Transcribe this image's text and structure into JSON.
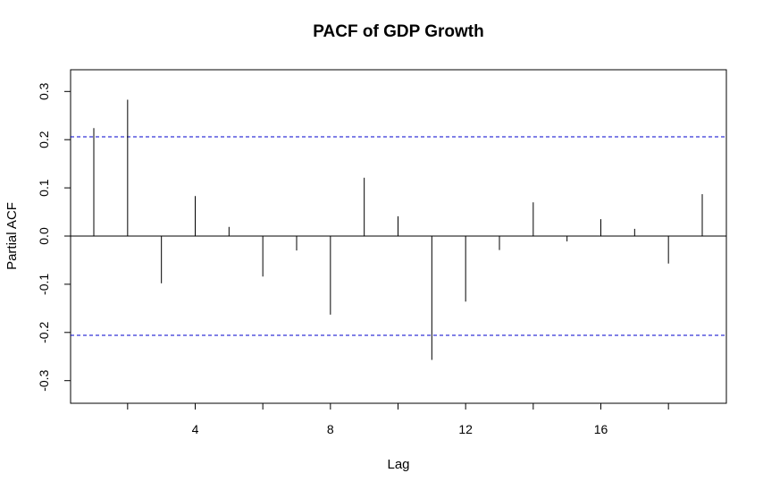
{
  "chart_data": {
    "type": "bar",
    "title": "PACF of GDP Growth",
    "xlabel": "Lag",
    "ylabel": "Partial ACF",
    "x": [
      1,
      2,
      3,
      4,
      5,
      6,
      7,
      8,
      9,
      10,
      11,
      12,
      13,
      14,
      15,
      16,
      17,
      18,
      19
    ],
    "values": [
      0.224,
      0.283,
      -0.098,
      0.083,
      0.019,
      -0.084,
      -0.03,
      -0.163,
      0.121,
      0.041,
      -0.257,
      -0.136,
      -0.029,
      0.07,
      -0.011,
      0.035,
      0.015,
      -0.057,
      0.087
    ],
    "confidence_bound": 0.206,
    "xlim": [
      0,
      19.9
    ],
    "ylim": [
      -0.33,
      0.33
    ],
    "x_ticks": [
      4,
      8,
      12,
      16
    ],
    "x_minor_ticks": [
      2,
      6,
      10,
      14,
      18
    ],
    "y_ticks": [
      -0.3,
      -0.2,
      -0.1,
      0.0,
      0.1,
      0.2,
      0.3
    ],
    "y_tick_labels": [
      "-0.3",
      "-0.2",
      "-0.1",
      "0.0",
      "0.1",
      "0.2",
      "0.3"
    ],
    "bound_line_color": "#0000CC",
    "bar_color": "#000000",
    "grid": false
  }
}
